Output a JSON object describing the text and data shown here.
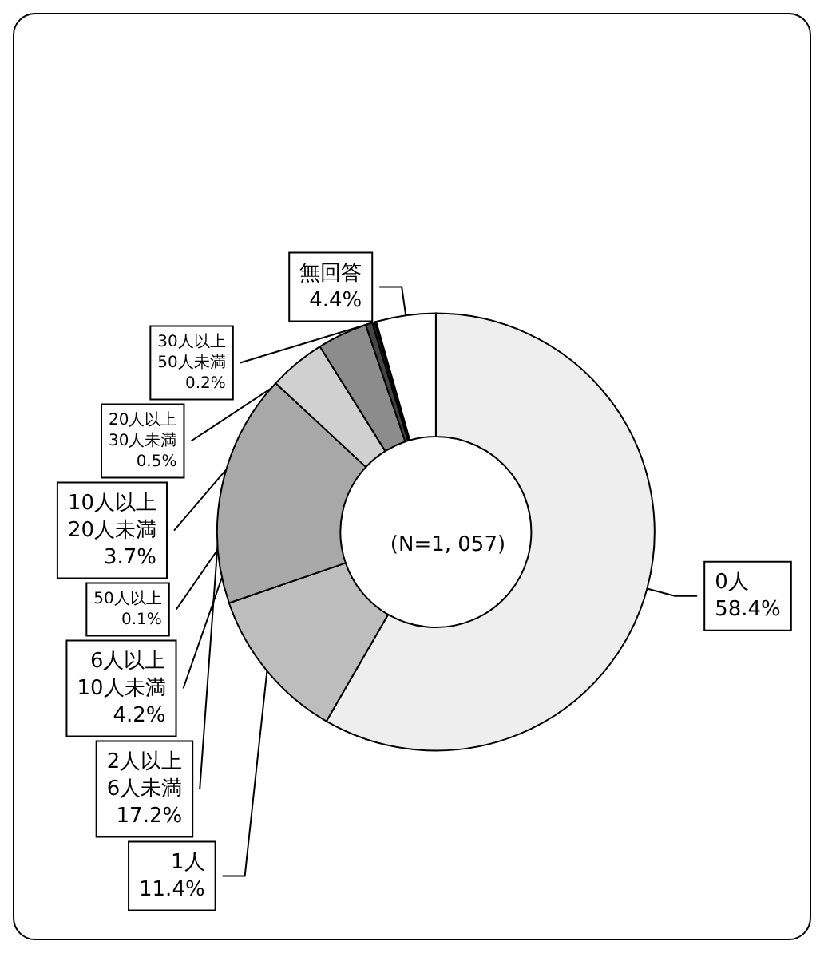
{
  "chart_data": {
    "type": "donut",
    "categories": [
      "0人",
      "1人",
      "2人以上\n6人未満",
      "6人以上\n10人未満",
      "10人以上\n20人未満",
      "20人以上\n30人未満",
      "30人以上\n50人未満",
      "50人以上",
      "無回答"
    ],
    "values": [
      58.4,
      11.4,
      17.2,
      4.2,
      3.7,
      0.5,
      0.2,
      0.1,
      4.4
    ],
    "value_labels": [
      "58.4%",
      "11.4%",
      "17.2%",
      "4.2%",
      "3.7%",
      "0.5%",
      "0.2%",
      "0.1%",
      "4.4%"
    ],
    "colors": [
      "#eeeeee",
      "#bdbdbd",
      "#a8a8a8",
      "#d0d0d0",
      "#8c8c8c",
      "#444444",
      "#222222",
      "#000000",
      "#ffffff"
    ],
    "annotations": [
      "(N=1, 057)"
    ],
    "legend": false
  }
}
